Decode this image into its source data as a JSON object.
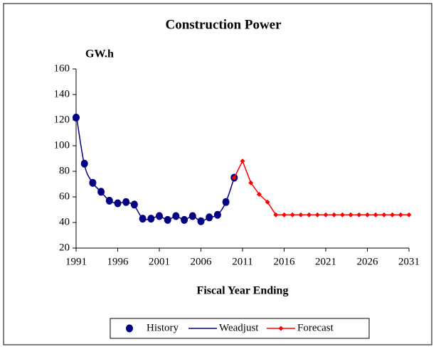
{
  "chart_data": {
    "type": "line",
    "title": "Construction Power",
    "y_label": "GW.h",
    "x_label": "Fiscal Year Ending",
    "xlim": [
      1991,
      2031
    ],
    "xticks": [
      1991,
      1996,
      2001,
      2006,
      2011,
      2016,
      2021,
      2026,
      2031
    ],
    "ylim": [
      20,
      160
    ],
    "yticks": [
      20,
      40,
      60,
      80,
      100,
      120,
      140,
      160
    ],
    "legend": "bottom",
    "series": [
      {
        "name": "History",
        "color": "#000080",
        "style": "markers",
        "x": [
          1991,
          1992,
          1993,
          1994,
          1995,
          1996,
          1997,
          1998,
          1999,
          2000,
          2001,
          2002,
          2003,
          2004,
          2005,
          2006,
          2007,
          2008,
          2009,
          2010
        ],
        "values": [
          122,
          86,
          71,
          64,
          57,
          55,
          56,
          54,
          43,
          43,
          45,
          42,
          45,
          42,
          45,
          41,
          44,
          46,
          56,
          75
        ]
      },
      {
        "name": "Weadjust",
        "color": "#000080",
        "style": "line",
        "x": [
          1991,
          1992,
          1993,
          1994,
          1995,
          1996,
          1997,
          1998,
          1999,
          2000,
          2001,
          2002,
          2003,
          2004,
          2005,
          2006,
          2007,
          2008,
          2009,
          2010
        ],
        "values": [
          125,
          85,
          71,
          64,
          57,
          55,
          56,
          53,
          43,
          43,
          45,
          42,
          45,
          42,
          45,
          41,
          44,
          46,
          56,
          75
        ]
      },
      {
        "name": "Forecast",
        "color": "#ff0000",
        "style": "line-diamond",
        "x": [
          2010,
          2011,
          2012,
          2013,
          2014,
          2015,
          2016,
          2017,
          2018,
          2019,
          2020,
          2021,
          2022,
          2023,
          2024,
          2025,
          2026,
          2027,
          2028,
          2029,
          2030,
          2031
        ],
        "values": [
          75,
          88,
          71,
          62,
          56,
          46,
          46,
          46,
          46,
          46,
          46,
          46,
          46,
          46,
          46,
          46,
          46,
          46,
          46,
          46,
          46,
          46
        ]
      }
    ]
  }
}
